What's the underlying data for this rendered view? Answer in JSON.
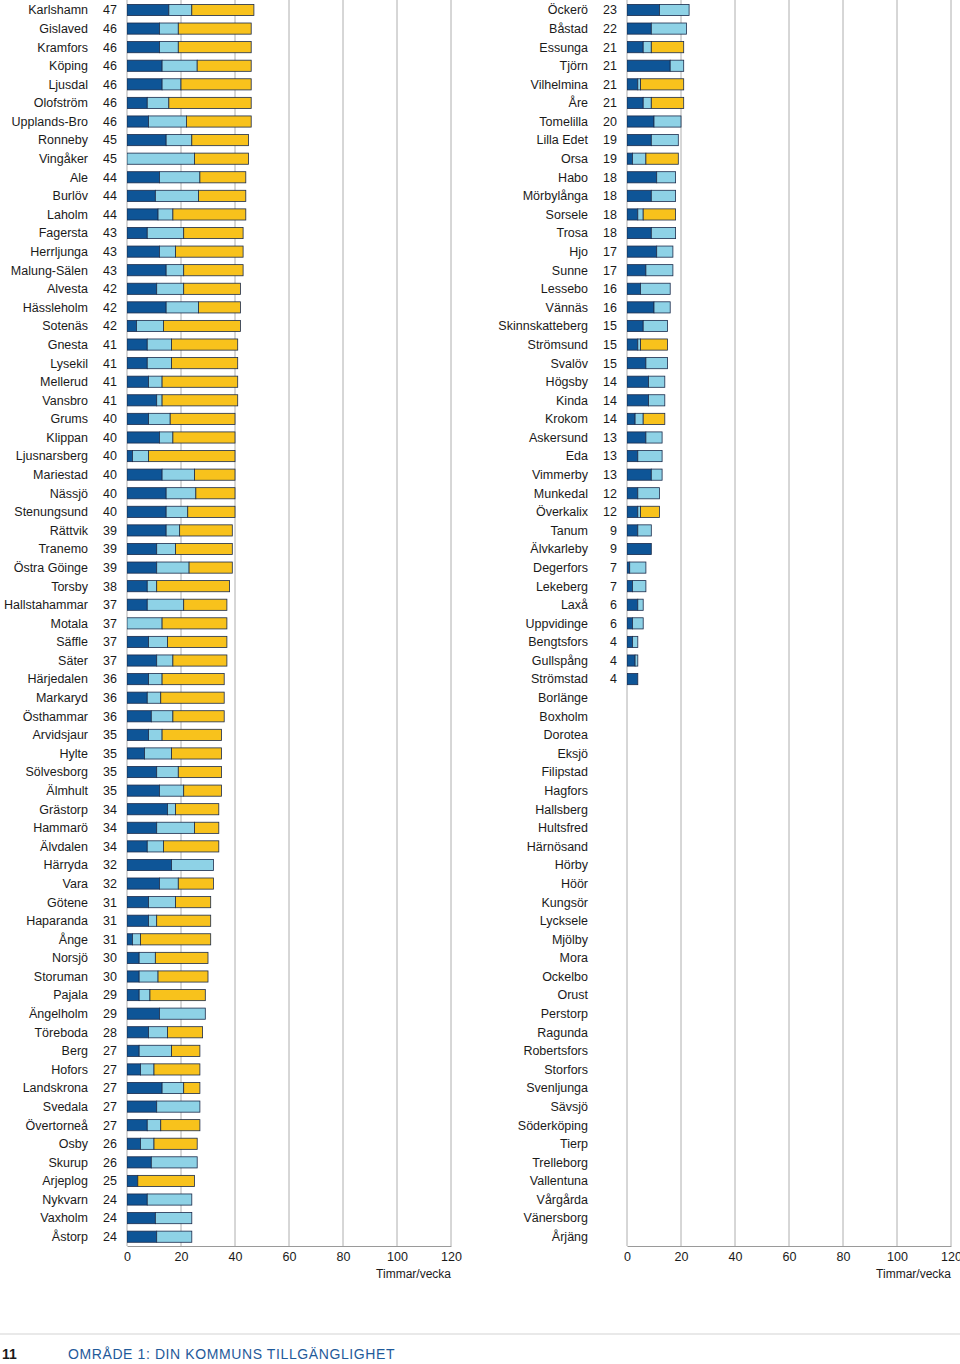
{
  "chart_data": [
    {
      "type": "bar",
      "orientation": "horizontal",
      "stacked": true,
      "grid": true,
      "categories": [
        "Karlshamn",
        "Gislaved",
        "Kramfors",
        "Köping",
        "Ljusdal",
        "Olofström",
        "Upplands-Bro",
        "Ronneby",
        "Vingåker",
        "Ale",
        "Burlöv",
        "Laholm",
        "Fagersta",
        "Herrljunga",
        "Malung-Sälen",
        "Alvesta",
        "Hässleholm",
        "Sotenäs",
        "Gnesta",
        "Lysekil",
        "Mellerud",
        "Vansbro",
        "Grums",
        "Klippan",
        "Ljusnarsberg",
        "Mariestad",
        "Nässjö",
        "Stenungsund",
        "Rättvik",
        "Tranemo",
        "Östra Göinge",
        "Torsby",
        "Hallstahammar",
        "Motala",
        "Säffle",
        "Säter",
        "Härjedalen",
        "Markaryd",
        "Östhammar",
        "Arvidsjaur",
        "Hylte",
        "Sölvesborg",
        "Älmhult",
        "Grästorp",
        "Hammarö",
        "Älvdalen",
        "Härryda",
        "Vara",
        "Götene",
        "Haparanda",
        "Ånge",
        "Norsjö",
        "Storuman",
        "Pajala",
        "Ängelholm",
        "Töreboda",
        "Berg",
        "Hofors",
        "Landskrona",
        "Svedala",
        "Övertorneå",
        "Osby",
        "Skurup",
        "Arjeplog",
        "Nykvarn",
        "Vaxholm",
        "Åstorp"
      ],
      "totals": [
        47,
        46,
        46,
        46,
        46,
        46,
        46,
        45,
        45,
        44,
        44,
        44,
        43,
        43,
        43,
        42,
        42,
        42,
        41,
        41,
        41,
        41,
        40,
        40,
        40,
        40,
        40,
        40,
        39,
        39,
        39,
        38,
        37,
        37,
        37,
        37,
        36,
        36,
        36,
        35,
        35,
        35,
        35,
        34,
        34,
        34,
        32,
        32,
        31,
        31,
        31,
        30,
        30,
        29,
        29,
        28,
        27,
        27,
        27,
        27,
        27,
        26,
        26,
        25,
        24,
        24,
        24
      ],
      "series": [
        {
          "color": "#0e5597",
          "values": [
            15.5,
            12,
            12,
            13,
            13,
            7.5,
            8,
            14.5,
            0,
            12,
            10.5,
            11.5,
            7.5,
            12,
            14.5,
            11,
            14.5,
            3.5,
            7.5,
            7.5,
            8,
            11,
            8,
            12,
            2,
            13,
            14.5,
            14.5,
            14.5,
            11,
            11,
            7.5,
            7.5,
            0,
            8,
            11,
            8,
            7.5,
            9,
            8,
            6.5,
            11,
            12,
            15,
            11,
            7.5,
            16.5,
            12,
            8,
            8,
            2,
            4.5,
            4.5,
            4.5,
            12,
            8,
            4.5,
            5,
            13,
            11,
            7.5,
            5,
            9,
            4,
            7.5,
            10.5,
            11
          ]
        },
        {
          "color": "#8ed2e6",
          "values": [
            8.5,
            7,
            7,
            13,
            7,
            8,
            14,
            9.5,
            25,
            15,
            16,
            5.5,
            13.5,
            6,
            6.5,
            10,
            12,
            10,
            9,
            9,
            5,
            2,
            8,
            5,
            6,
            12,
            11,
            8,
            5,
            7,
            12,
            3.5,
            13.5,
            13,
            7,
            6,
            5,
            5,
            8,
            5,
            10,
            8,
            9,
            3,
            14,
            6,
            15.5,
            7,
            10,
            3,
            3,
            6,
            7,
            4,
            17,
            7,
            12,
            5,
            8,
            16,
            5,
            5,
            17,
            0,
            16.5,
            13.5,
            13
          ]
        },
        {
          "color": "#f8c21c",
          "values": [
            23,
            27,
            27,
            20,
            26,
            30.5,
            24,
            21,
            20,
            17,
            17.5,
            27,
            22,
            25,
            22,
            21,
            15.5,
            28.5,
            24.5,
            24.5,
            28,
            28,
            24,
            23,
            32,
            15,
            14.5,
            17.5,
            19.5,
            21,
            16,
            27,
            16,
            24,
            22,
            20,
            23,
            23.5,
            19,
            22,
            18.5,
            16,
            14,
            16,
            9,
            20.5,
            0,
            13,
            13,
            20,
            26,
            19.5,
            18.5,
            20.5,
            0,
            13,
            10.5,
            17,
            6,
            0,
            14.5,
            16,
            0,
            21,
            0,
            0,
            0
          ]
        }
      ],
      "xlim": [
        0,
        120
      ],
      "xticks": [
        0,
        20,
        40,
        60,
        80,
        100,
        120
      ],
      "x_label": "Timmar/vecka"
    },
    {
      "type": "bar",
      "orientation": "horizontal",
      "stacked": true,
      "grid": true,
      "categories": [
        "Öckerö",
        "Båstad",
        "Essunga",
        "Tjörn",
        "Vilhelmina",
        "Åre",
        "Tomelilla",
        "Lilla Edet",
        "Orsa",
        "Habo",
        "Mörbylånga",
        "Sorsele",
        "Trosa",
        "Hjo",
        "Sunne",
        "Lessebo",
        "Vännäs",
        "Skinnskatteberg",
        "Strömsund",
        "Svalöv",
        "Högsby",
        "Kinda",
        "Krokom",
        "Askersund",
        "Eda",
        "Vimmerby",
        "Munkedal",
        "Överkalix",
        "Tanum",
        "Älvkarleby",
        "Degerfors",
        "Lekeberg",
        "Laxå",
        "Uppvidinge",
        "Bengtsfors",
        "Gullspång",
        "Strömstad",
        "Borlänge",
        "Boxholm",
        "Dorotea",
        "Eksjö",
        "Filipstad",
        "Hagfors",
        "Hallsberg",
        "Hultsfred",
        "Härnösand",
        "Hörby",
        "Höör",
        "Kungsör",
        "Lycksele",
        "Mjölby",
        "Mora",
        "Ockelbo",
        "Orust",
        "Perstorp",
        "Ragunda",
        "Robertsfors",
        "Storfors",
        "Svenljunga",
        "Sävsjö",
        "Söderköping",
        "Tierp",
        "Trelleborg",
        "Vallentuna",
        "Vårgårda",
        "Vänersborg",
        "Årjäng"
      ],
      "totals": [
        23,
        22,
        21,
        21,
        21,
        21,
        20,
        19,
        19,
        18,
        18,
        18,
        18,
        17,
        17,
        16,
        16,
        15,
        15,
        15,
        14,
        14,
        14,
        13,
        13,
        13,
        12,
        12,
        9,
        9,
        7,
        7,
        6,
        6,
        4,
        4,
        4,
        null,
        null,
        null,
        null,
        null,
        null,
        null,
        null,
        null,
        null,
        null,
        null,
        null,
        null,
        null,
        null,
        null,
        null,
        null,
        null,
        null,
        null,
        null,
        null,
        null,
        null,
        null,
        null,
        null,
        null
      ],
      "series": [
        {
          "color": "#0e5597",
          "values": [
            12,
            9,
            6,
            16,
            4,
            6,
            10,
            9,
            2,
            11,
            9,
            4,
            9,
            11,
            7,
            5,
            10,
            6,
            4,
            7,
            8,
            8,
            3,
            7,
            4,
            9,
            4,
            4,
            4,
            9,
            1,
            2,
            4,
            2,
            2,
            3,
            4,
            0,
            0,
            0,
            0,
            0,
            0,
            0,
            0,
            0,
            0,
            0,
            0,
            0,
            0,
            0,
            0,
            0,
            0,
            0,
            0,
            0,
            0,
            0,
            0,
            0,
            0,
            0,
            0,
            0,
            0
          ]
        },
        {
          "color": "#8ed2e6",
          "values": [
            11,
            13,
            3,
            5,
            1,
            3,
            10,
            10,
            5,
            7,
            9,
            2,
            9,
            6,
            10,
            11,
            6,
            9,
            1,
            8,
            6,
            6,
            3,
            6,
            9,
            4,
            8,
            1,
            5,
            0,
            6,
            5,
            2,
            4,
            2,
            1,
            0,
            0,
            0,
            0,
            0,
            0,
            0,
            0,
            0,
            0,
            0,
            0,
            0,
            0,
            0,
            0,
            0,
            0,
            0,
            0,
            0,
            0,
            0,
            0,
            0,
            0,
            0,
            0,
            0,
            0,
            0
          ]
        },
        {
          "color": "#f8c21c",
          "values": [
            0,
            0,
            12,
            0,
            16,
            12,
            0,
            0,
            12,
            0,
            0,
            12,
            0,
            0,
            0,
            0,
            0,
            0,
            10,
            0,
            0,
            0,
            8,
            0,
            0,
            0,
            0,
            7,
            0,
            0,
            0,
            0,
            0,
            0,
            0,
            0,
            0,
            0,
            0,
            0,
            0,
            0,
            0,
            0,
            0,
            0,
            0,
            0,
            0,
            0,
            0,
            0,
            0,
            0,
            0,
            0,
            0,
            0,
            0,
            0,
            0,
            0,
            0,
            0,
            0,
            0,
            0
          ]
        }
      ],
      "xlim": [
        0,
        120
      ],
      "xticks": [
        0,
        20,
        40,
        60,
        80,
        100,
        120
      ],
      "x_label": "Timmar/vecka"
    }
  ],
  "footer": {
    "page_number": "11",
    "section": "OMRÅDE 1: DIN KOMMUNS TILLGÄNGLIGHET"
  }
}
